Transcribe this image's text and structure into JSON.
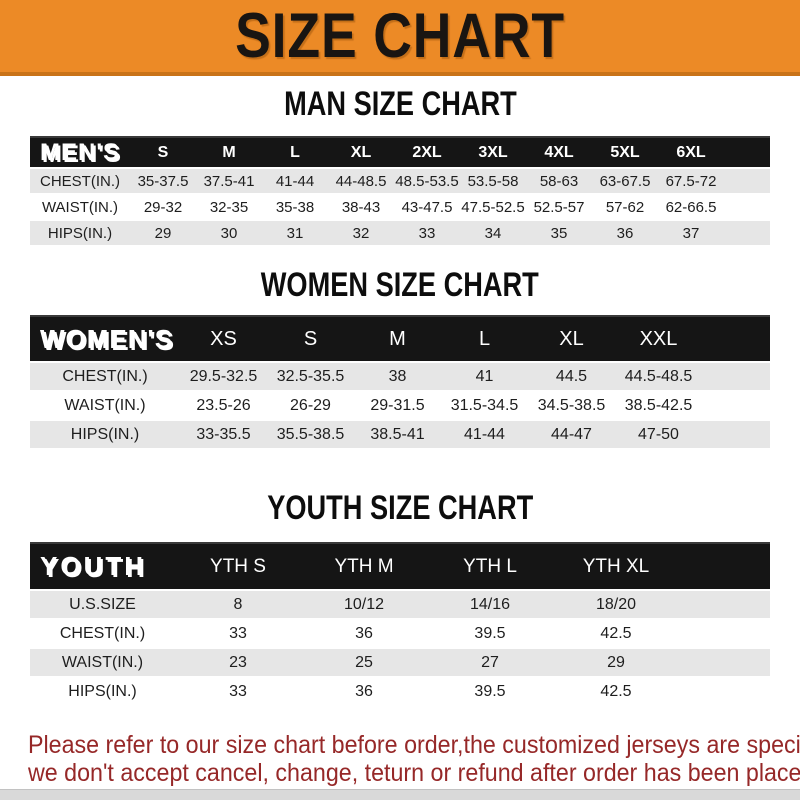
{
  "banner": {
    "title": "SIZE CHART"
  },
  "colors": {
    "banner_bg": "#ec8a26",
    "banner_edge": "#c97318",
    "bar_bg": "#151515",
    "row_stripe": "#e6e6e6",
    "notice_color": "#962828",
    "strip_bg": "#d9d9d9"
  },
  "sections": [
    {
      "heading": "MAN SIZE CHART",
      "table": {
        "header_label": "MEN'S",
        "columns": [
          "S",
          "M",
          "L",
          "XL",
          "2XL",
          "3XL",
          "4XL",
          "5XL",
          "6XL"
        ],
        "rows": [
          {
            "label": "CHEST(IN.)",
            "values": [
              "35-37.5",
              "37.5-41",
              "41-44",
              "44-48.5",
              "48.5-53.5",
              "53.5-58",
              "58-63",
              "63-67.5",
              "67.5-72"
            ]
          },
          {
            "label": "WAIST(IN.)",
            "values": [
              "29-32",
              "32-35",
              "35-38",
              "38-43",
              "43-47.5",
              "47.5-52.5",
              "52.5-57",
              "57-62",
              "62-66.5"
            ]
          },
          {
            "label": "HIPS(IN.)",
            "values": [
              "29",
              "30",
              "31",
              "32",
              "33",
              "34",
              "35",
              "36",
              "37"
            ]
          }
        ]
      }
    },
    {
      "heading": "WOMEN SIZE CHART",
      "table": {
        "header_label": "WOMEN'S",
        "columns": [
          "XS",
          "S",
          "M",
          "L",
          "XL",
          "XXL"
        ],
        "rows": [
          {
            "label": "CHEST(IN.)",
            "values": [
              "29.5-32.5",
              "32.5-35.5",
              "38",
              "41",
              "44.5",
              "44.5-48.5"
            ]
          },
          {
            "label": "WAIST(IN.)",
            "values": [
              "23.5-26",
              "26-29",
              "29-31.5",
              "31.5-34.5",
              "34.5-38.5",
              "38.5-42.5"
            ]
          },
          {
            "label": "HIPS(IN.)",
            "values": [
              "33-35.5",
              "35.5-38.5",
              "38.5-41",
              "41-44",
              "44-47",
              "47-50"
            ]
          }
        ]
      }
    },
    {
      "heading": "YOUTH SIZE CHART",
      "table": {
        "header_label": "YOUTH",
        "columns": [
          "YTH S",
          "YTH M",
          "YTH L",
          "YTH XL"
        ],
        "rows": [
          {
            "label": "U.S.SIZE",
            "values": [
              "8",
              "10/12",
              "14/16",
              "18/20"
            ]
          },
          {
            "label": "CHEST(IN.)",
            "values": [
              "33",
              "36",
              "39.5",
              "42.5"
            ]
          },
          {
            "label": "WAIST(IN.)",
            "values": [
              "23",
              "25",
              "27",
              "29"
            ]
          },
          {
            "label": "HIPS(IN.)",
            "values": [
              "33",
              "36",
              "39.5",
              "42.5"
            ]
          }
        ]
      }
    }
  ],
  "footer": {
    "line1": "Please refer to our size chart before order,the customized jerseys are special products,",
    "line2": "we don't accept cancel, change, teturn or refund after order has been placed!"
  }
}
